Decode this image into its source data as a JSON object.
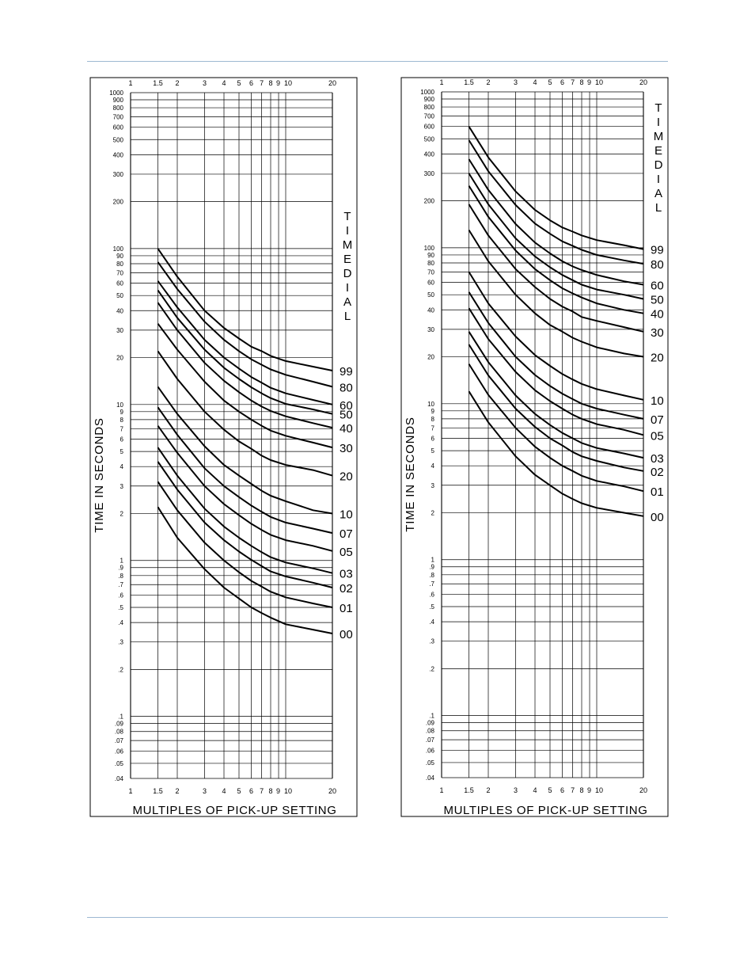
{
  "page": {
    "rule_color": "#9DB8D2"
  },
  "chart_data": [
    {
      "type": "line",
      "x_scale": "log",
      "y_scale": "log",
      "xlim": [
        1,
        20
      ],
      "ylim": [
        0.04,
        1000
      ],
      "xlabel": "MULTIPLES OF PICK-UP SETTING",
      "ylabel": "TIME IN SECONDS",
      "legend_title": "TIMEDIAL",
      "x_ticks": [
        1,
        1.5,
        2,
        3,
        4,
        5,
        6,
        7,
        8,
        9,
        10,
        20
      ],
      "x_tick_labels": [
        "1",
        "1.5",
        "2",
        "3",
        "4",
        "5",
        "6",
        "7",
        "8",
        "9",
        "10",
        "20"
      ],
      "y_ticks": [
        1000,
        900,
        800,
        700,
        600,
        500,
        400,
        300,
        200,
        100,
        90,
        80,
        70,
        60,
        50,
        40,
        30,
        20,
        10,
        9,
        8,
        7,
        6,
        5,
        4,
        3,
        2,
        1,
        0.9,
        0.8,
        0.7,
        0.6,
        0.5,
        0.4,
        0.3,
        0.2,
        0.1,
        0.09,
        0.08,
        0.07,
        0.06,
        0.05,
        0.04
      ],
      "y_tick_labels": [
        "1000",
        "900",
        "800",
        "700",
        "600",
        "500",
        "400",
        "300",
        "200",
        "100",
        "90",
        "80",
        "70",
        "60",
        "50",
        "40",
        "30",
        "20",
        "10",
        "9",
        "8",
        "7",
        "6",
        "5",
        "4",
        "3",
        "2",
        "1",
        ".9",
        ".8",
        ".7",
        ".6",
        ".5",
        ".4",
        ".3",
        ".2",
        ".1",
        ".09",
        ".08",
        ".07",
        ".06",
        ".05",
        ".04"
      ],
      "x": [
        1.5,
        2,
        3,
        4,
        5,
        6,
        7,
        8,
        10,
        15,
        20
      ],
      "series": [
        {
          "name": "99",
          "values": [
            100,
            66,
            40,
            31,
            26.5,
            23.5,
            22,
            20.5,
            19,
            17.5,
            16.5
          ]
        },
        {
          "name": "80",
          "values": [
            82,
            55,
            34,
            26,
            22,
            19.5,
            18,
            16.8,
            15.5,
            14,
            13
          ]
        },
        {
          "name": "60",
          "values": [
            62,
            42,
            26,
            20,
            17,
            15,
            13.8,
            12.8,
            11.8,
            10.7,
            10
          ]
        },
        {
          "name": "50",
          "values": [
            54,
            36,
            22.5,
            17.2,
            14.6,
            12.9,
            11.8,
            11,
            10.1,
            9.3,
            8.7
          ]
        },
        {
          "name": "40",
          "values": [
            45,
            30,
            18.5,
            14.2,
            12,
            10.6,
            9.7,
            9.1,
            8.4,
            7.6,
            7.1
          ]
        },
        {
          "name": "30",
          "values": [
            33,
            22.5,
            14,
            10.6,
            9,
            8,
            7.3,
            6.8,
            6.3,
            5.7,
            5.3
          ]
        },
        {
          "name": "20",
          "values": [
            22,
            14.6,
            9,
            6.9,
            5.8,
            5.2,
            4.7,
            4.4,
            4.1,
            3.8,
            3.5
          ]
        },
        {
          "name": "10",
          "values": [
            13,
            8.7,
            5.4,
            4.1,
            3.5,
            3.1,
            2.8,
            2.6,
            2.4,
            2.1,
            2
          ]
        },
        {
          "name": "07",
          "values": [
            9.6,
            6.4,
            3.9,
            3,
            2.55,
            2.25,
            2.05,
            1.9,
            1.75,
            1.6,
            1.5
          ]
        },
        {
          "name": "05",
          "values": [
            7.3,
            4.9,
            3,
            2.3,
            1.95,
            1.72,
            1.57,
            1.46,
            1.35,
            1.24,
            1.15
          ]
        },
        {
          "name": "03",
          "values": [
            5.3,
            3.5,
            2.15,
            1.65,
            1.4,
            1.24,
            1.13,
            1.05,
            0.97,
            0.89,
            0.83
          ]
        },
        {
          "name": "02",
          "values": [
            4.3,
            2.85,
            1.75,
            1.35,
            1.14,
            1.01,
            0.92,
            0.85,
            0.79,
            0.72,
            0.67
          ]
        },
        {
          "name": "01",
          "values": [
            3.2,
            2.1,
            1.3,
            1,
            0.84,
            0.74,
            0.68,
            0.63,
            0.58,
            0.53,
            0.5
          ]
        },
        {
          "name": "00",
          "values": [
            2.2,
            1.4,
            0.88,
            0.67,
            0.57,
            0.5,
            0.46,
            0.43,
            0.39,
            0.36,
            0.34
          ]
        }
      ]
    },
    {
      "type": "line",
      "x_scale": "log",
      "y_scale": "log",
      "xlim": [
        1,
        20
      ],
      "ylim": [
        0.04,
        1000
      ],
      "xlabel": "MULTIPLES OF PICK-UP SETTING",
      "ylabel": "TIME IN SECONDS",
      "legend_title": "TIMEDIAL",
      "x_ticks": [
        1,
        1.5,
        2,
        3,
        4,
        5,
        6,
        7,
        8,
        9,
        10,
        20
      ],
      "x_tick_labels": [
        "1",
        "1.5",
        "2",
        "3",
        "4",
        "5",
        "6",
        "7",
        "8",
        "9",
        "10",
        "20"
      ],
      "y_ticks": [
        1000,
        900,
        800,
        700,
        600,
        500,
        400,
        300,
        200,
        100,
        90,
        80,
        70,
        60,
        50,
        40,
        30,
        20,
        10,
        9,
        8,
        7,
        6,
        5,
        4,
        3,
        2,
        1,
        0.9,
        0.8,
        0.7,
        0.6,
        0.5,
        0.4,
        0.3,
        0.2,
        0.1,
        0.09,
        0.08,
        0.07,
        0.06,
        0.05,
        0.04
      ],
      "y_tick_labels": [
        "1000",
        "900",
        "800",
        "700",
        "600",
        "500",
        "400",
        "300",
        "200",
        "100",
        "90",
        "80",
        "70",
        "60",
        "50",
        "40",
        "30",
        "20",
        "10",
        "9",
        "8",
        "7",
        "6",
        "5",
        "4",
        "3",
        "2",
        "1",
        ".9",
        ".8",
        ".7",
        ".6",
        ".5",
        ".4",
        ".3",
        ".2",
        ".1",
        ".09",
        ".08",
        ".07",
        ".06",
        ".05",
        ".04"
      ],
      "x": [
        1.5,
        2,
        3,
        4,
        5,
        6,
        7,
        8,
        10,
        15,
        20
      ],
      "series": [
        {
          "name": "99",
          "values": [
            600,
            380,
            230,
            175,
            150,
            135,
            127,
            120,
            112,
            104,
            98
          ]
        },
        {
          "name": "80",
          "values": [
            490,
            310,
            188,
            143,
            123,
            110,
            103,
            97,
            90,
            83,
            79
          ]
        },
        {
          "name": "60",
          "values": [
            370,
            235,
            142,
            108,
            92,
            82,
            76,
            72,
            67,
            61,
            58
          ]
        },
        {
          "name": "50",
          "values": [
            300,
            190,
            115,
            88,
            75,
            67,
            62,
            58,
            54,
            50,
            47
          ]
        },
        {
          "name": "40",
          "values": [
            250,
            158,
            96,
            73,
            62,
            55,
            51,
            48,
            44,
            40,
            38
          ]
        },
        {
          "name": "30",
          "values": [
            190,
            120,
            73,
            56,
            47,
            42,
            39,
            36,
            34,
            31,
            29
          ]
        },
        {
          "name": "20",
          "values": [
            130,
            82,
            50,
            38,
            32,
            29,
            26.5,
            25,
            23,
            21,
            20
          ]
        },
        {
          "name": "10",
          "values": [
            70,
            44,
            27,
            20.5,
            17.5,
            15.5,
            14.3,
            13.4,
            12.4,
            11.3,
            10.6
          ]
        },
        {
          "name": "07",
          "values": [
            52,
            33,
            20,
            15.3,
            13,
            11.6,
            10.7,
            10,
            9.3,
            8.5,
            8
          ]
        },
        {
          "name": "05",
          "values": [
            41,
            26,
            16,
            12.2,
            10.4,
            9.3,
            8.5,
            8,
            7.4,
            6.8,
            6.3
          ]
        },
        {
          "name": "03",
          "values": [
            29,
            18.5,
            11.3,
            8.6,
            7.3,
            6.5,
            6,
            5.6,
            5.2,
            4.8,
            4.5
          ]
        },
        {
          "name": "02",
          "values": [
            24,
            15.2,
            9.3,
            7.1,
            6,
            5.4,
            4.9,
            4.6,
            4.3,
            3.9,
            3.7
          ]
        },
        {
          "name": "01",
          "values": [
            18,
            11.4,
            7,
            5.3,
            4.5,
            4,
            3.7,
            3.45,
            3.2,
            2.95,
            2.75
          ]
        },
        {
          "name": "00",
          "values": [
            12,
            7.6,
            4.6,
            3.5,
            3,
            2.65,
            2.45,
            2.3,
            2.15,
            2,
            1.9
          ]
        }
      ]
    }
  ]
}
